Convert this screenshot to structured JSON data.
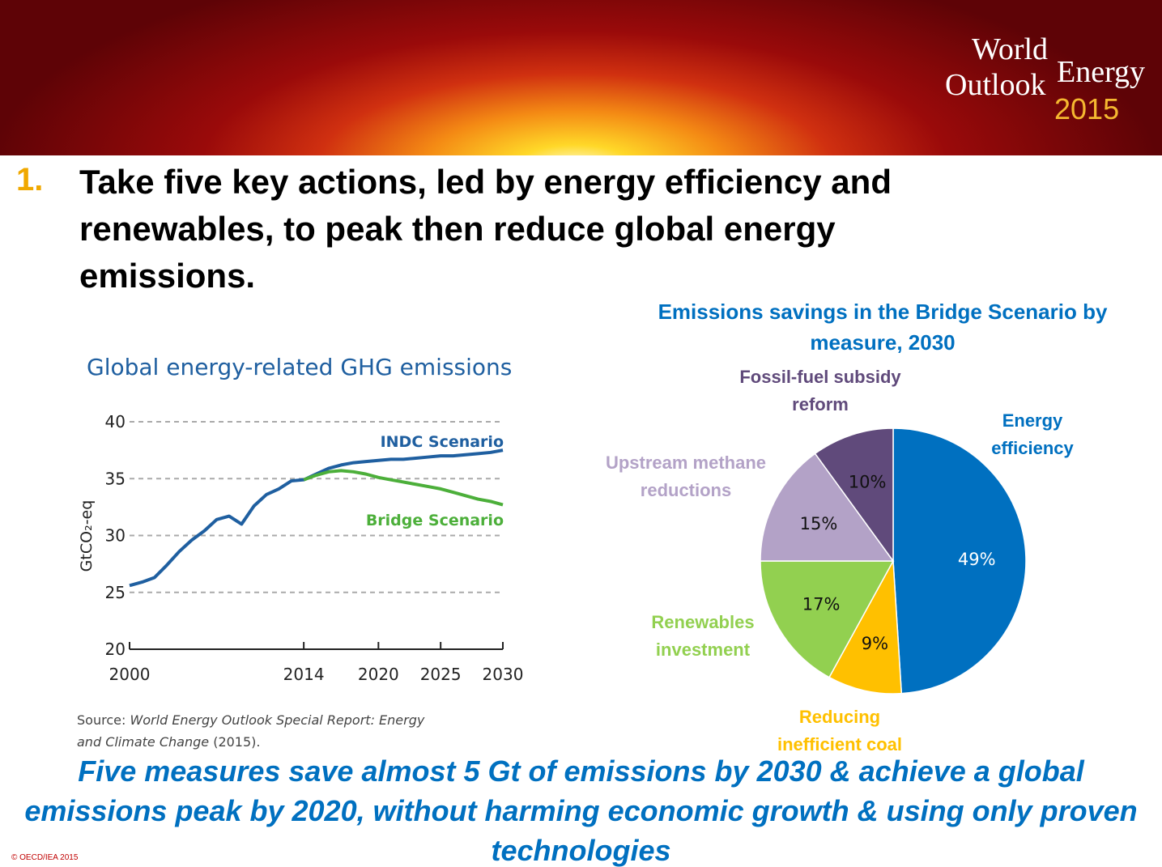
{
  "header": {
    "logo": {
      "line1": "World",
      "line2": "Energy",
      "line3": "Outlook",
      "year": "2015"
    }
  },
  "slide": {
    "number": "1.",
    "title_lines": [
      "Take five key actions, led by energy efficiency and",
      "renewables, to peak then reduce global energy",
      "emissions."
    ],
    "conclusion": "Five measures save almost 5 Gt of emissions by 2030 & achieve a global emissions peak by 2020, without harming economic growth & using only proven technologies",
    "copyright": "© OECD/IEA 2015",
    "source": {
      "prefix": "Source:",
      "title": "World Energy Outlook Special Report: Energy and Climate Change",
      "suffix": "(2015)."
    }
  },
  "chart_data": [
    {
      "type": "line",
      "title": "Global energy-related GHG emissions",
      "ylabel": "GtCO₂-eq",
      "x": [
        2000,
        2001,
        2002,
        2003,
        2004,
        2005,
        2006,
        2007,
        2008,
        2009,
        2010,
        2011,
        2012,
        2013,
        2014,
        2015,
        2016,
        2017,
        2018,
        2019,
        2020,
        2021,
        2022,
        2023,
        2024,
        2025,
        2026,
        2027,
        2028,
        2029,
        2030
      ],
      "series": [
        {
          "name": "INDC Scenario",
          "color": "#1f5fa0",
          "values": [
            25.6,
            25.9,
            26.3,
            27.4,
            28.6,
            29.6,
            30.4,
            31.4,
            31.7,
            31.0,
            32.6,
            33.6,
            34.1,
            34.8,
            34.9,
            35.4,
            35.9,
            36.2,
            36.4,
            36.5,
            36.6,
            36.7,
            36.7,
            36.8,
            36.9,
            37.0,
            37.0,
            37.1,
            37.2,
            37.3,
            37.5
          ]
        },
        {
          "name": "Bridge Scenario",
          "color": "#4caf3a",
          "values": [
            null,
            null,
            null,
            null,
            null,
            null,
            null,
            null,
            null,
            null,
            null,
            null,
            null,
            null,
            34.9,
            35.3,
            35.6,
            35.7,
            35.6,
            35.4,
            35.1,
            34.9,
            34.7,
            34.5,
            34.3,
            34.1,
            33.8,
            33.5,
            33.2,
            33.0,
            32.7
          ]
        }
      ],
      "xlim": [
        2000,
        2030
      ],
      "xticks": [
        2000,
        2014,
        2020,
        2025,
        2030
      ],
      "ylim": [
        20,
        40
      ],
      "yticks": [
        20,
        25,
        30,
        35,
        40
      ],
      "grid": true
    },
    {
      "type": "pie",
      "title": "Emissions savings in the Bridge Scenario by measure, 2030",
      "categories": [
        "Energy efficiency",
        "Reducing inefficient coal",
        "Renewables investment",
        "Upstream methane reductions",
        "Fossil-fuel subsidy reform"
      ],
      "values": [
        49,
        9,
        17,
        15,
        10
      ],
      "value_labels": [
        "49%",
        "9%",
        "17%",
        "15%",
        "10%"
      ],
      "colors": [
        "#0070c0",
        "#ffc000",
        "#92d050",
        "#b3a2c7",
        "#604a7b"
      ],
      "label_colors": [
        "#0070c0",
        "#ffc000",
        "#92d050",
        "#b3a2c7",
        "#604a7b"
      ]
    }
  ]
}
